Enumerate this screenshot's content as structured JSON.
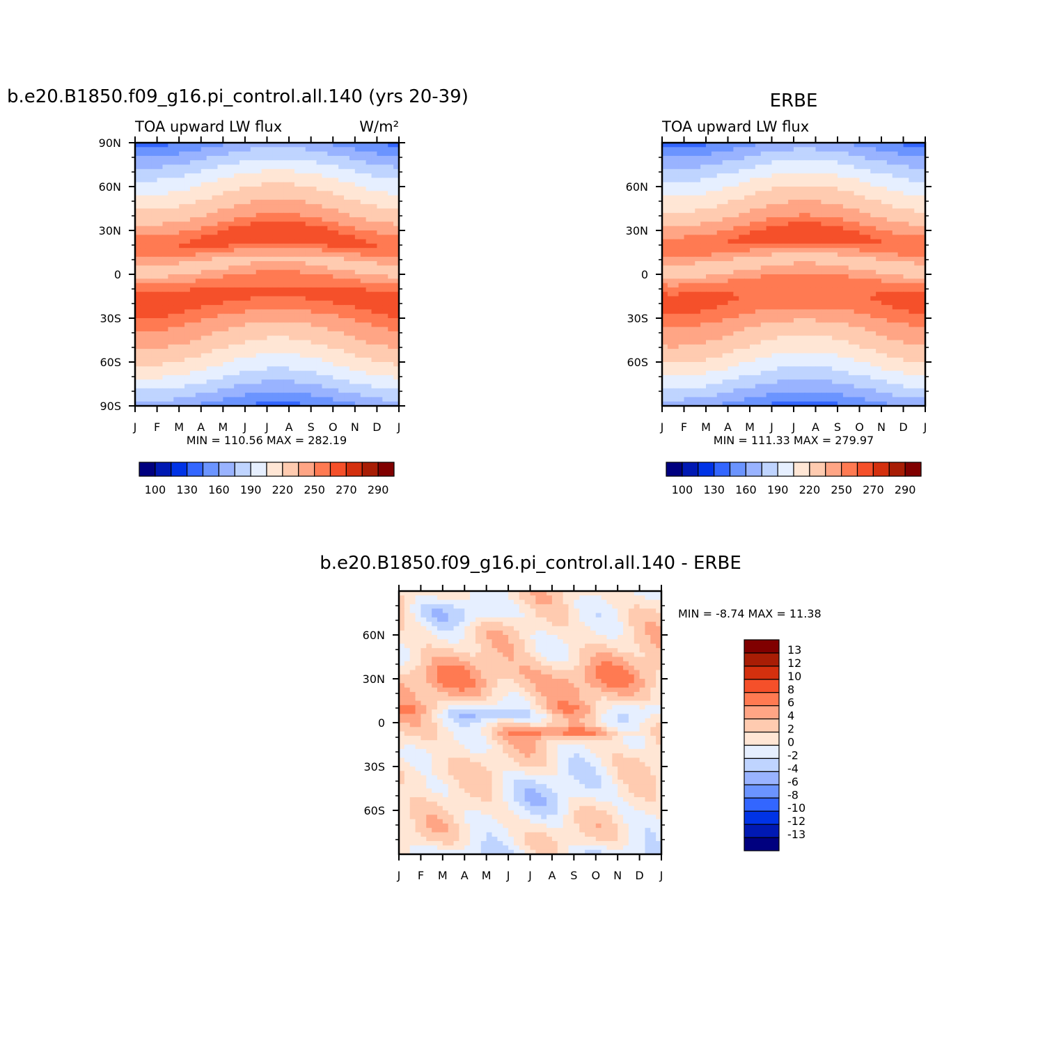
{
  "chart_data": [
    {
      "id": "model",
      "type": "heatmap",
      "title": "b.e20.B1850.f09_g16.pi_control.all.140 (yrs 20-39)",
      "left_label": "TOA upward LW flux",
      "units": "W/m²",
      "x_categories": [
        "J",
        "F",
        "M",
        "A",
        "M",
        "J",
        "J",
        "A",
        "S",
        "O",
        "N",
        "D",
        "J"
      ],
      "y_ticks": [
        "90N",
        "60N",
        "30N",
        "0",
        "30S",
        "60S",
        "90S"
      ],
      "y_ticks_values": [
        90,
        60,
        30,
        0,
        -30,
        -60,
        -90
      ],
      "ylim": [
        -90,
        90
      ],
      "stats": "MIN = 110.56 MAX = 282.19",
      "min": 110.56,
      "max": 282.19,
      "colorbar": {
        "orientation": "horizontal",
        "labels": [
          "100",
          "130",
          "160",
          "190",
          "220",
          "250",
          "270",
          "290"
        ],
        "colors": [
          "#00007f",
          "#0019b3",
          "#0033e6",
          "#3366ff",
          "#6b94ff",
          "#99b3ff",
          "#bfd4ff",
          "#e6efff",
          "#ffe6d5",
          "#ffcbb0",
          "#ffa585",
          "#ff7a52",
          "#f5502a",
          "#d4300e",
          "#a81d05",
          "#800000"
        ]
      },
      "grid": false
    },
    {
      "id": "obs",
      "type": "heatmap",
      "title": "ERBE",
      "left_label": "TOA upward LW flux",
      "x_categories": [
        "J",
        "F",
        "M",
        "A",
        "M",
        "J",
        "J",
        "A",
        "S",
        "O",
        "N",
        "D",
        "J"
      ],
      "y_ticks": [
        "60N",
        "30N",
        "0",
        "30S",
        "60S"
      ],
      "y_ticks_values": [
        60,
        30,
        0,
        -30,
        -60
      ],
      "ylim": [
        -90,
        90
      ],
      "stats": "MIN = 111.33 MAX = 279.97",
      "min": 111.33,
      "max": 279.97,
      "colorbar": {
        "orientation": "horizontal",
        "labels": [
          "100",
          "130",
          "160",
          "190",
          "220",
          "250",
          "270",
          "290"
        ],
        "colors": [
          "#00007f",
          "#0019b3",
          "#0033e6",
          "#3366ff",
          "#6b94ff",
          "#99b3ff",
          "#bfd4ff",
          "#e6efff",
          "#ffe6d5",
          "#ffcbb0",
          "#ffa585",
          "#ff7a52",
          "#f5502a",
          "#d4300e",
          "#a81d05",
          "#800000"
        ]
      },
      "grid": false
    },
    {
      "id": "diff",
      "type": "heatmap",
      "title": "b.e20.B1850.f09_g16.pi_control.all.140 - ERBE",
      "x_categories": [
        "J",
        "F",
        "M",
        "A",
        "M",
        "J",
        "J",
        "A",
        "S",
        "O",
        "N",
        "D",
        "J"
      ],
      "y_ticks": [
        "60N",
        "30N",
        "0",
        "30S",
        "60S"
      ],
      "y_ticks_values": [
        60,
        30,
        0,
        -30,
        -60
      ],
      "ylim": [
        -90,
        90
      ],
      "stats": "MIN = -8.74 MAX = 11.38",
      "min": -8.74,
      "max": 11.38,
      "colorbar": {
        "orientation": "vertical",
        "labels": [
          "13",
          "12",
          "10",
          "8",
          "6",
          "4",
          "2",
          "0",
          "-2",
          "-4",
          "-6",
          "-8",
          "-10",
          "-12",
          "-13"
        ],
        "colors": [
          "#800000",
          "#a81d05",
          "#d4300e",
          "#f5502a",
          "#ff7a52",
          "#ffa585",
          "#ffcbb0",
          "#ffe6d5",
          "#e6efff",
          "#bfd4ff",
          "#99b3ff",
          "#6b94ff",
          "#3366ff",
          "#0033e6",
          "#0019b3",
          "#00007f"
        ]
      },
      "grid": false
    }
  ]
}
